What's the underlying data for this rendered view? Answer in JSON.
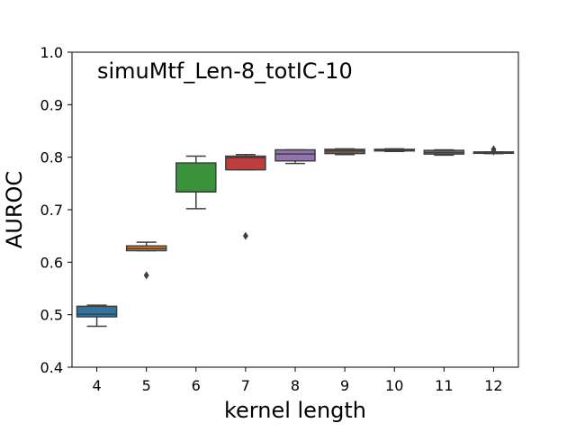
{
  "chart_data": {
    "type": "box",
    "title": "simuMtf_Len-8_totIC-10",
    "xlabel": "kernel length",
    "ylabel": "AUROC",
    "ylim": [
      0.4,
      1.0
    ],
    "yticks": [
      "0.4",
      "0.5",
      "0.6",
      "0.7",
      "0.8",
      "0.9",
      "1.0"
    ],
    "grid": false,
    "categories": [
      "4",
      "5",
      "6",
      "7",
      "8",
      "9",
      "10",
      "11",
      "12"
    ],
    "boxes": [
      {
        "category": "4",
        "whisker_low": 0.478,
        "q1": 0.496,
        "median": 0.501,
        "q3": 0.516,
        "whisker_high": 0.518,
        "outliers": [],
        "color": "#3274a1"
      },
      {
        "category": "5",
        "whisker_low": 0.622,
        "q1": 0.622,
        "median": 0.626,
        "q3": 0.631,
        "whisker_high": 0.638,
        "outliers": [
          0.575
        ],
        "color": "#e1812c"
      },
      {
        "category": "6",
        "whisker_low": 0.702,
        "q1": 0.734,
        "median": 0.734,
        "q3": 0.789,
        "whisker_high": 0.802,
        "outliers": [],
        "color": "#3a923a"
      },
      {
        "category": "7",
        "whisker_low": 0.776,
        "q1": 0.776,
        "median": 0.799,
        "q3": 0.802,
        "whisker_high": 0.805,
        "outliers": [
          0.65
        ],
        "color": "#c03d3e"
      },
      {
        "category": "8",
        "whisker_low": 0.788,
        "q1": 0.793,
        "median": 0.806,
        "q3": 0.814,
        "whisker_high": 0.814,
        "outliers": [],
        "color": "#9372b2"
      },
      {
        "category": "9",
        "whisker_low": 0.805,
        "q1": 0.807,
        "median": 0.812,
        "q3": 0.815,
        "whisker_high": 0.816,
        "outliers": [],
        "color": "#845b53"
      },
      {
        "category": "10",
        "whisker_low": 0.811,
        "q1": 0.812,
        "median": 0.813,
        "q3": 0.815,
        "whisker_high": 0.816,
        "outliers": [],
        "color": "#d684bd"
      },
      {
        "category": "11",
        "whisker_low": 0.804,
        "q1": 0.806,
        "median": 0.809,
        "q3": 0.813,
        "whisker_high": 0.814,
        "outliers": [],
        "color": "#7f7f7f"
      },
      {
        "category": "12",
        "whisker_low": 0.807,
        "q1": 0.808,
        "median": 0.808,
        "q3": 0.81,
        "whisker_high": 0.81,
        "outliers": [
          0.815,
          0.811
        ],
        "color": "#a9aa35"
      }
    ]
  }
}
